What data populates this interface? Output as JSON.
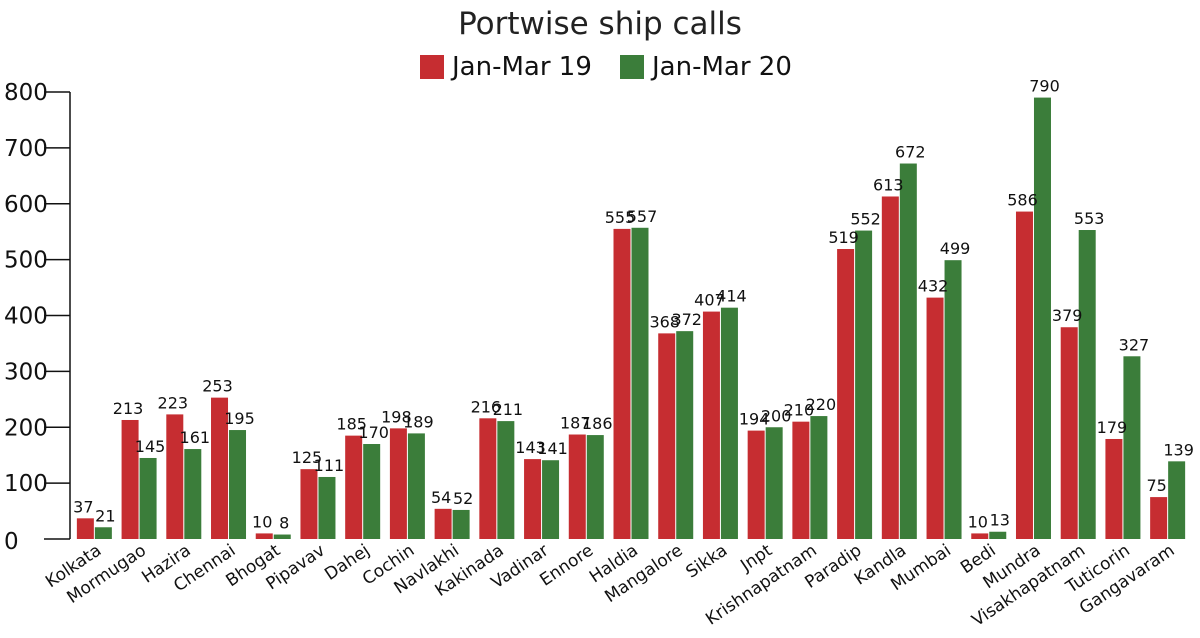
{
  "chart_data": {
    "type": "bar",
    "title": "Portwise ship calls",
    "xlabel": "",
    "ylabel": "",
    "ylim": [
      0,
      800
    ],
    "yticks": [
      0,
      100,
      200,
      300,
      400,
      500,
      600,
      700,
      800
    ],
    "legend_position": "top-center",
    "grid": false,
    "categories": [
      "Kolkata",
      "Mormugao",
      "Hazira",
      "Chennai",
      "Bhogat",
      "Pipavav",
      "Dahej",
      "Cochin",
      "Navlakhi",
      "Kakinada",
      "Vadinar",
      "Ennore",
      "Haldia",
      "Mangalore",
      "Sikka",
      "Jnpt",
      "Krishnapatnam",
      "Paradip",
      "Kandla",
      "Mumbai",
      "Bedi",
      "Mundra",
      "Visakhapatnam",
      "Tuticorin",
      "Gangavaram"
    ],
    "series": [
      {
        "name": "Jan-Mar 19",
        "color": "#c62d31",
        "values": [
          37,
          213,
          223,
          253,
          10,
          125,
          185,
          198,
          54,
          216,
          143,
          187,
          555,
          368,
          407,
          194,
          210,
          519,
          613,
          432,
          10,
          586,
          379,
          179,
          75
        ]
      },
      {
        "name": "Jan-Mar 20",
        "color": "#3b7d3a",
        "values": [
          21,
          145,
          161,
          195,
          8,
          111,
          170,
          189,
          52,
          211,
          141,
          186,
          557,
          372,
          414,
          200,
          220,
          552,
          672,
          499,
          13,
          790,
          553,
          327,
          139
        ]
      }
    ]
  }
}
